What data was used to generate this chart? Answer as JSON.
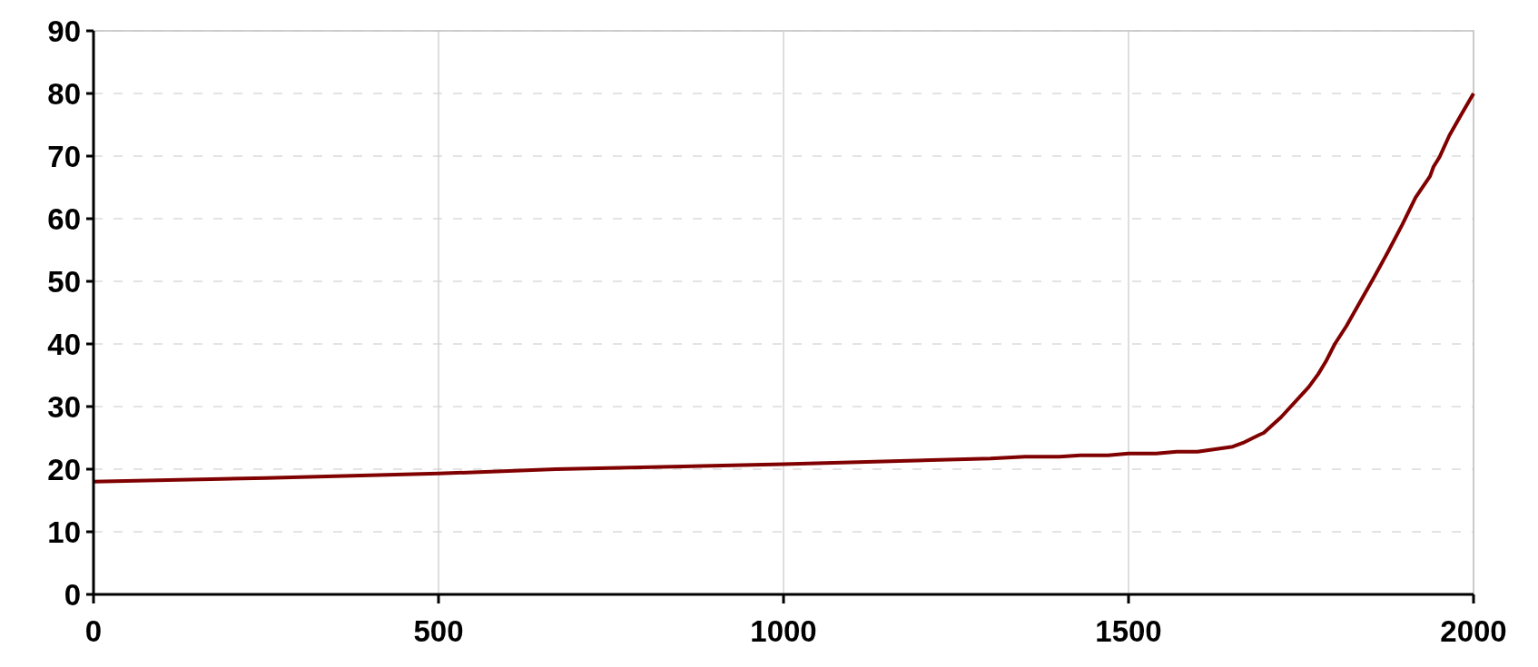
{
  "chart_data": {
    "type": "line",
    "xlim": [
      0,
      2000
    ],
    "xticks": [
      0,
      500,
      1000,
      1500,
      2000
    ],
    "ylim": [
      0,
      90
    ],
    "yticks": [
      0,
      10,
      20,
      30,
      40,
      50,
      60,
      70,
      80,
      90
    ],
    "grid": true,
    "marker": "none",
    "line_style": "solid",
    "series": [
      {
        "color": "#800000",
        "x": [
          0,
          250,
          500,
          670,
          1000,
          1300,
          1350,
          1400,
          1430,
          1470,
          1500,
          1540,
          1570,
          1600,
          1651,
          1668,
          1690,
          1696,
          1721,
          1761,
          1775,
          1786,
          1799,
          1816,
          1837,
          1856,
          1876,
          1896,
          1916,
          1937,
          1942,
          1951,
          1965,
          1982,
          2000
        ],
        "values": [
          18,
          18.6,
          19.3,
          20,
          20.8,
          21.7,
          22,
          22,
          22.2,
          22.2,
          22.5,
          22.5,
          22.8,
          22.8,
          23.6,
          24.3,
          25.5,
          25.8,
          28.3,
          33.1,
          35.2,
          37.2,
          40,
          42.9,
          47,
          50.7,
          54.7,
          58.9,
          63.4,
          66.8,
          68.3,
          69.9,
          73.3,
          76.6,
          80
        ]
      }
    ]
  }
}
